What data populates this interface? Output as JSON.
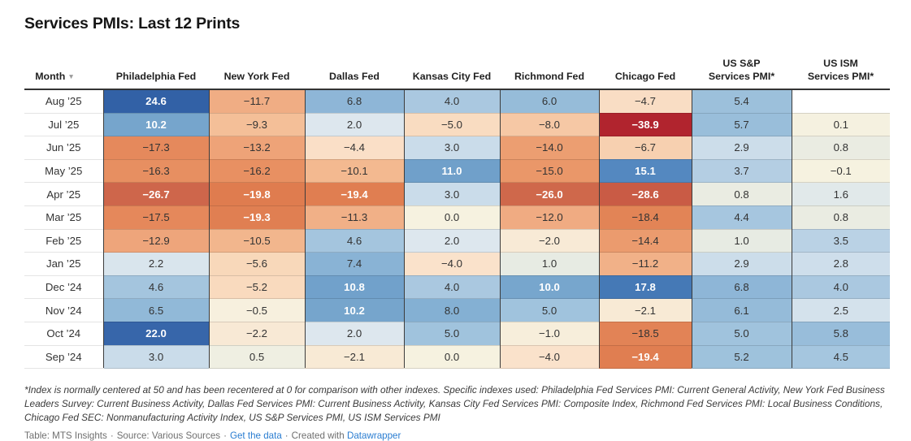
{
  "title": "Services PMIs: Last 12 Prints",
  "table_ui": {
    "sort_icon": "▼"
  },
  "chart_data": {
    "type": "heatmap",
    "title": "Services PMIs: Last 12 Prints",
    "row_label_header": "Month",
    "columns": [
      "Philadelphia Fed",
      "New York Fed",
      "Dallas Fed",
      "Kansas City Fed",
      "Richmond Fed",
      "Chicago Fed",
      "US S&P\nServices PMI*",
      "US ISM\nServices PMI*"
    ],
    "rows": [
      "Aug ’25",
      "Jul ’25",
      "Jun ’25",
      "May ’25",
      "Apr ’25",
      "Mar ’25",
      "Feb ’25",
      "Jan ’25",
      "Dec ’24",
      "Nov ’24",
      "Oct ’24",
      "Sep ’24"
    ],
    "values": [
      [
        24.6,
        -11.7,
        6.8,
        4.0,
        6.0,
        -4.7,
        5.4,
        null
      ],
      [
        10.2,
        -9.3,
        2.0,
        -5.0,
        -8.0,
        -38.9,
        5.7,
        0.1
      ],
      [
        -17.3,
        -13.2,
        -4.4,
        3.0,
        -14.0,
        -6.7,
        2.9,
        0.8
      ],
      [
        -16.3,
        -16.2,
        -10.1,
        11.0,
        -15.0,
        15.1,
        3.7,
        -0.1
      ],
      [
        -26.7,
        -19.8,
        -19.4,
        3.0,
        -26.0,
        -28.6,
        0.8,
        1.6
      ],
      [
        -17.5,
        -19.3,
        -11.3,
        0.0,
        -12.0,
        -18.4,
        4.4,
        0.8
      ],
      [
        -12.9,
        -10.5,
        4.6,
        2.0,
        -2.0,
        -14.4,
        1.0,
        3.5
      ],
      [
        2.2,
        -5.6,
        7.4,
        -4.0,
        1.0,
        -11.2,
        2.9,
        2.8
      ],
      [
        4.6,
        -5.2,
        10.8,
        4.0,
        10.0,
        17.8,
        6.8,
        4.0
      ],
      [
        6.5,
        -0.5,
        10.2,
        8.0,
        5.0,
        -2.1,
        6.1,
        2.5
      ],
      [
        22.0,
        -2.2,
        2.0,
        5.0,
        -1.0,
        -18.5,
        5.0,
        5.8
      ],
      [
        3.0,
        0.5,
        -2.1,
        0.0,
        -4.0,
        -19.4,
        5.2,
        4.5
      ]
    ],
    "value_format": "1-decimal",
    "grid": true,
    "legend_position": "none",
    "color_scale": {
      "domain": [
        -40,
        25
      ],
      "neutral_at": 0,
      "stops": [
        [
          -40,
          "#ae1e2c"
        ],
        [
          -30,
          "#c65340"
        ],
        [
          -27,
          "#cd654b"
        ],
        [
          -20,
          "#de7b4e"
        ],
        [
          -17,
          "#e68b5d"
        ],
        [
          -15,
          "#ea9769"
        ],
        [
          -12,
          "#f0ab82"
        ],
        [
          -10,
          "#f3ba91"
        ],
        [
          -8,
          "#f6c8a5"
        ],
        [
          -6,
          "#f8d5b6"
        ],
        [
          -4,
          "#fae2cb"
        ],
        [
          -2,
          "#f8ead6"
        ],
        [
          0,
          "#f6f2e0"
        ],
        [
          1,
          "#e7ebe3"
        ],
        [
          2,
          "#dde7ee"
        ],
        [
          3,
          "#cadcea"
        ],
        [
          4,
          "#aac8e0"
        ],
        [
          5,
          "#a0c3dd"
        ],
        [
          6,
          "#96bcd9"
        ],
        [
          7,
          "#8cb5d6"
        ],
        [
          8,
          "#84b0d3"
        ],
        [
          10,
          "#77a6cd"
        ],
        [
          12,
          "#689ac7"
        ],
        [
          15,
          "#5589c0"
        ],
        [
          18,
          "#4478b5"
        ],
        [
          22,
          "#3766aa"
        ],
        [
          25,
          "#3160a5"
        ]
      ],
      "white_text_threshold": {
        "positive": 10,
        "negative": -19
      }
    }
  },
  "footnote": "*Index is normally centered at 50 and has been recentered at 0 for comparison with other indexes. Specific indexes used: Philadelphia Fed Services PMI: Current General Activity, New York Fed Business Leaders Survey: Current Business Activity, Dallas Fed Services PMI: Current Business Activity, Kansas City Fed Services PMI: Composite Index, Richmond Fed Services PMI: Local Business Conditions, Chicago Fed SEC: Nonmanufacturing Activity Index, US S&P Services PMI, US ISM Services PMI",
  "attribution": {
    "table_credit": "Table: MTS Insights",
    "source_credit": "Source: Various Sources",
    "get_data_link": "Get the data",
    "created_with": "Created with",
    "datawrapper_link": "Datawrapper",
    "separator": "·"
  },
  "colors": {
    "link": "#2a7dd1",
    "header_border": "#333333",
    "column_divider": "#3c3c3c",
    "footnote_text": "#3a3a3a",
    "attribution_text": "#6f6f6f"
  }
}
